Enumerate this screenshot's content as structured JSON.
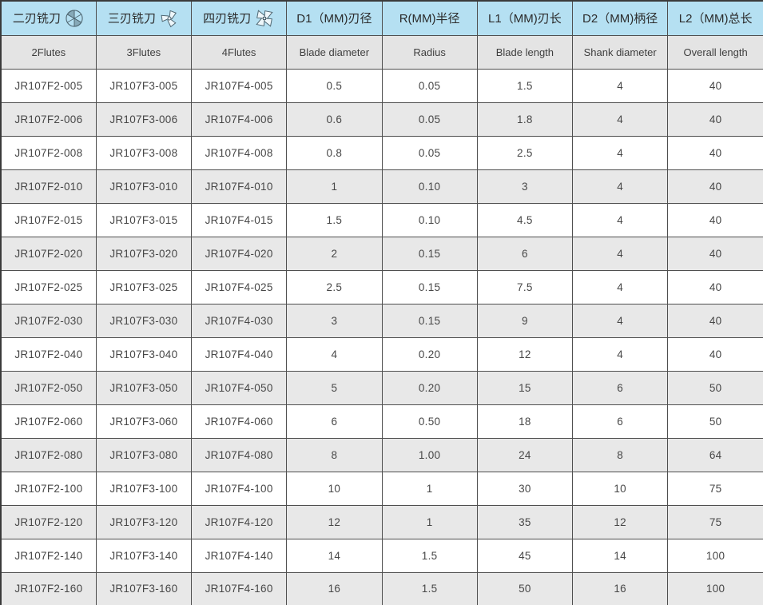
{
  "page_title": "Corner radius end mill specification table",
  "colors": {
    "header_blue": "#b5e0f2",
    "header_gray": "#e4e4e4",
    "stripe_gray": "#e8e8e8",
    "row_white": "#ffffff",
    "inner_border": "#4f4f4f",
    "outer_border": "#3a3a3a",
    "text": "#474747",
    "icon_stroke": "#4e6570"
  },
  "header": {
    "columns": [
      {
        "zh": "二刃铣刀",
        "en": "2Flutes",
        "icon": "two-flute-endmill-icon"
      },
      {
        "zh": "三刃铣刀",
        "en": "3Flutes",
        "icon": "three-flute-endmill-icon"
      },
      {
        "zh": "四刃铣刀",
        "en": "4Flutes",
        "icon": "four-flute-endmill-icon"
      },
      {
        "zh": "D1（MM)刃径",
        "en": "Blade diameter",
        "icon": null
      },
      {
        "zh": "R(MM)半径",
        "en": "Radius",
        "icon": null
      },
      {
        "zh": "L1（MM)刃长",
        "en": "Blade length",
        "icon": null
      },
      {
        "zh": "D2（MM)柄径",
        "en": "Shank diameter",
        "icon": null
      },
      {
        "zh": "L2（MM)总长",
        "en": "Overall length",
        "icon": null
      }
    ]
  },
  "rows": [
    [
      "JR107F2-005",
      "JR107F3-005",
      "JR107F4-005",
      "0.5",
      "0.05",
      "1.5",
      "4",
      "40"
    ],
    [
      "JR107F2-006",
      "JR107F3-006",
      "JR107F4-006",
      "0.6",
      "0.05",
      "1.8",
      "4",
      "40"
    ],
    [
      "JR107F2-008",
      "JR107F3-008",
      "JR107F4-008",
      "0.8",
      "0.05",
      "2.5",
      "4",
      "40"
    ],
    [
      "JR107F2-010",
      "JR107F3-010",
      "JR107F4-010",
      "1",
      "0.10",
      "3",
      "4",
      "40"
    ],
    [
      "JR107F2-015",
      "JR107F3-015",
      "JR107F4-015",
      "1.5",
      "0.10",
      "4.5",
      "4",
      "40"
    ],
    [
      "JR107F2-020",
      "JR107F3-020",
      "JR107F4-020",
      "2",
      "0.15",
      "6",
      "4",
      "40"
    ],
    [
      "JR107F2-025",
      "JR107F3-025",
      "JR107F4-025",
      "2.5",
      "0.15",
      "7.5",
      "4",
      "40"
    ],
    [
      "JR107F2-030",
      "JR107F3-030",
      "JR107F4-030",
      "3",
      "0.15",
      "9",
      "4",
      "40"
    ],
    [
      "JR107F2-040",
      "JR107F3-040",
      "JR107F4-040",
      "4",
      "0.20",
      "12",
      "4",
      "40"
    ],
    [
      "JR107F2-050",
      "JR107F3-050",
      "JR107F4-050",
      "5",
      "0.20",
      "15",
      "6",
      "50"
    ],
    [
      "JR107F2-060",
      "JR107F3-060",
      "JR107F4-060",
      "6",
      "0.50",
      "18",
      "6",
      "50"
    ],
    [
      "JR107F2-080",
      "JR107F3-080",
      "JR107F4-080",
      "8",
      "1.00",
      "24",
      "8",
      "64"
    ],
    [
      "JR107F2-100",
      "JR107F3-100",
      "JR107F4-100",
      "10",
      "1",
      "30",
      "10",
      "75"
    ],
    [
      "JR107F2-120",
      "JR107F3-120",
      "JR107F4-120",
      "12",
      "1",
      "35",
      "12",
      "75"
    ],
    [
      "JR107F2-140",
      "JR107F3-140",
      "JR107F4-140",
      "14",
      "1.5",
      "45",
      "14",
      "100"
    ],
    [
      "JR107F2-160",
      "JR107F3-160",
      "JR107F4-160",
      "16",
      "1.5",
      "50",
      "16",
      "100"
    ]
  ]
}
